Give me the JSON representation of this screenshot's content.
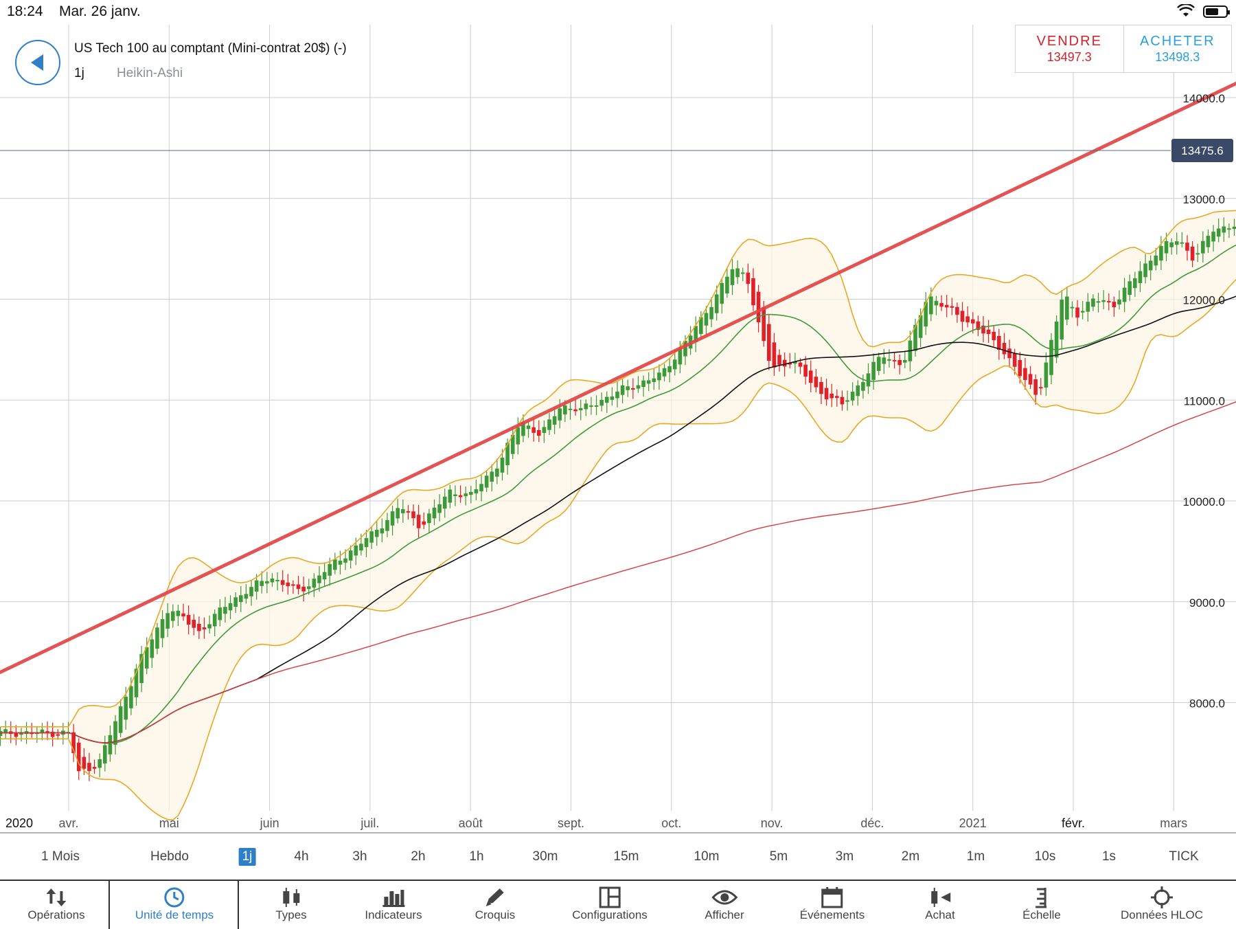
{
  "status_bar": {
    "time": "18:24",
    "date": "Mar. 26 janv."
  },
  "instrument": {
    "title": "US Tech 100 au comptant (Mini-contrat 20$) (-)",
    "timeframe": "1j",
    "chart_type": "Heikin-Ashi"
  },
  "trade": {
    "sell_label": "VENDRE",
    "sell_price": "13497.3",
    "buy_label": "ACHETER",
    "buy_price": "13498.3"
  },
  "colors": {
    "accent": "#2f7fc8",
    "sell": "#d3232a",
    "buy": "#2a9fd8",
    "up_candle": "#3a9a3a",
    "down_candle": "#e0202a",
    "trendline": "#e24545",
    "bollinger": "#e8a825",
    "ma_green": "#3d9a3d",
    "ma_black": "#111111",
    "ma_red": "#d93a3a",
    "price_tag_bg": "#3a4a66"
  },
  "chart_data": {
    "type": "candlestick",
    "style": "Heikin-Ashi",
    "period": "1j",
    "y_ticks": [
      "14000.0",
      "13000.0",
      "12000.0",
      "11000.0",
      "10000.0",
      "9000.0",
      "8000.0"
    ],
    "x_ticks": [
      "2020",
      "avr.",
      "mai",
      "juin",
      "juil.",
      "août",
      "sept.",
      "oct.",
      "nov.",
      "déc.",
      "2021",
      "févr.",
      "mars"
    ],
    "ylim": [
      7100,
      14900
    ],
    "current_price_label": "13475.6",
    "close_path": [
      {
        "t": 0,
        "v": 7700
      },
      {
        "t": 0.1,
        "v": 7300
      },
      {
        "t": 0.3,
        "v": 7400
      },
      {
        "t": 0.7,
        "v": 8400
      },
      {
        "t": 1.0,
        "v": 8950
      },
      {
        "t": 1.3,
        "v": 8700
      },
      {
        "t": 1.6,
        "v": 9000
      },
      {
        "t": 2.0,
        "v": 9250
      },
      {
        "t": 2.3,
        "v": 9100
      },
      {
        "t": 2.6,
        "v": 9350
      },
      {
        "t": 3.0,
        "v": 9650
      },
      {
        "t": 3.3,
        "v": 9950
      },
      {
        "t": 3.5,
        "v": 9750
      },
      {
        "t": 3.8,
        "v": 10100
      },
      {
        "t": 4.0,
        "v": 10050
      },
      {
        "t": 4.3,
        "v": 10400
      },
      {
        "t": 4.5,
        "v": 10800
      },
      {
        "t": 4.7,
        "v": 10650
      },
      {
        "t": 4.9,
        "v": 10950
      },
      {
        "t": 5.1,
        "v": 10900
      },
      {
        "t": 5.5,
        "v": 11100
      },
      {
        "t": 5.9,
        "v": 11250
      },
      {
        "t": 6.3,
        "v": 11800
      },
      {
        "t": 6.6,
        "v": 12300
      },
      {
        "t": 6.75,
        "v": 12250
      },
      {
        "t": 6.85,
        "v": 11800
      },
      {
        "t": 7.0,
        "v": 11300
      },
      {
        "t": 7.2,
        "v": 11400
      },
      {
        "t": 7.45,
        "v": 11100
      },
      {
        "t": 7.7,
        "v": 10950
      },
      {
        "t": 7.9,
        "v": 11200
      },
      {
        "t": 8.1,
        "v": 11450
      },
      {
        "t": 8.3,
        "v": 11350
      },
      {
        "t": 8.55,
        "v": 12050
      },
      {
        "t": 8.75,
        "v": 11900
      },
      {
        "t": 9.0,
        "v": 11750
      },
      {
        "t": 9.3,
        "v": 11500
      },
      {
        "t": 9.5,
        "v": 11200
      },
      {
        "t": 9.65,
        "v": 11050
      },
      {
        "t": 9.75,
        "v": 11450
      },
      {
        "t": 9.9,
        "v": 12050
      },
      {
        "t": 10.05,
        "v": 11850
      },
      {
        "t": 10.2,
        "v": 12000
      },
      {
        "t": 10.4,
        "v": 11950
      },
      {
        "t": 10.6,
        "v": 12200
      },
      {
        "t": 10.85,
        "v": 12500
      },
      {
        "t": 11.05,
        "v": 12600
      },
      {
        "t": 11.2,
        "v": 12400
      },
      {
        "t": 11.4,
        "v": 12700
      },
      {
        "t": 11.7,
        "v": 12750
      },
      {
        "t": 11.9,
        "v": 12900
      },
      {
        "t": 12.05,
        "v": 12750
      },
      {
        "t": 12.25,
        "v": 13050
      },
      {
        "t": 12.45,
        "v": 12850
      },
      {
        "t": 12.6,
        "v": 13100
      },
      {
        "t": 12.75,
        "v": 13450
      },
      {
        "t": 12.8,
        "v": 13500
      }
    ]
  },
  "timeframes": [
    "1 Mois",
    "Hebdo",
    "1j",
    "4h",
    "3h",
    "2h",
    "1h",
    "30m",
    "15m",
    "10m",
    "5m",
    "3m",
    "2m",
    "1m",
    "10s",
    "1s",
    "TICK"
  ],
  "active_timeframe": "1j",
  "toolbar": [
    {
      "label": "Opérations",
      "icon": "arrows-updown-icon"
    },
    {
      "label": "Unité de temps",
      "icon": "clock-icon"
    },
    {
      "label": "Types",
      "icon": "candles-icon"
    },
    {
      "label": "Indicateurs",
      "icon": "bars-icon"
    },
    {
      "label": "Croquis",
      "icon": "pencil-icon"
    },
    {
      "label": "Configurations",
      "icon": "layout-icon"
    },
    {
      "label": "Afficher",
      "icon": "eye-icon"
    },
    {
      "label": "Événements",
      "icon": "calendar-icon"
    },
    {
      "label": "Achat",
      "icon": "buy-icon"
    },
    {
      "label": "Échelle",
      "icon": "scale-icon"
    },
    {
      "label": "Données HLOC",
      "icon": "crosshair-icon"
    }
  ],
  "active_toolbar": "Unité de temps"
}
